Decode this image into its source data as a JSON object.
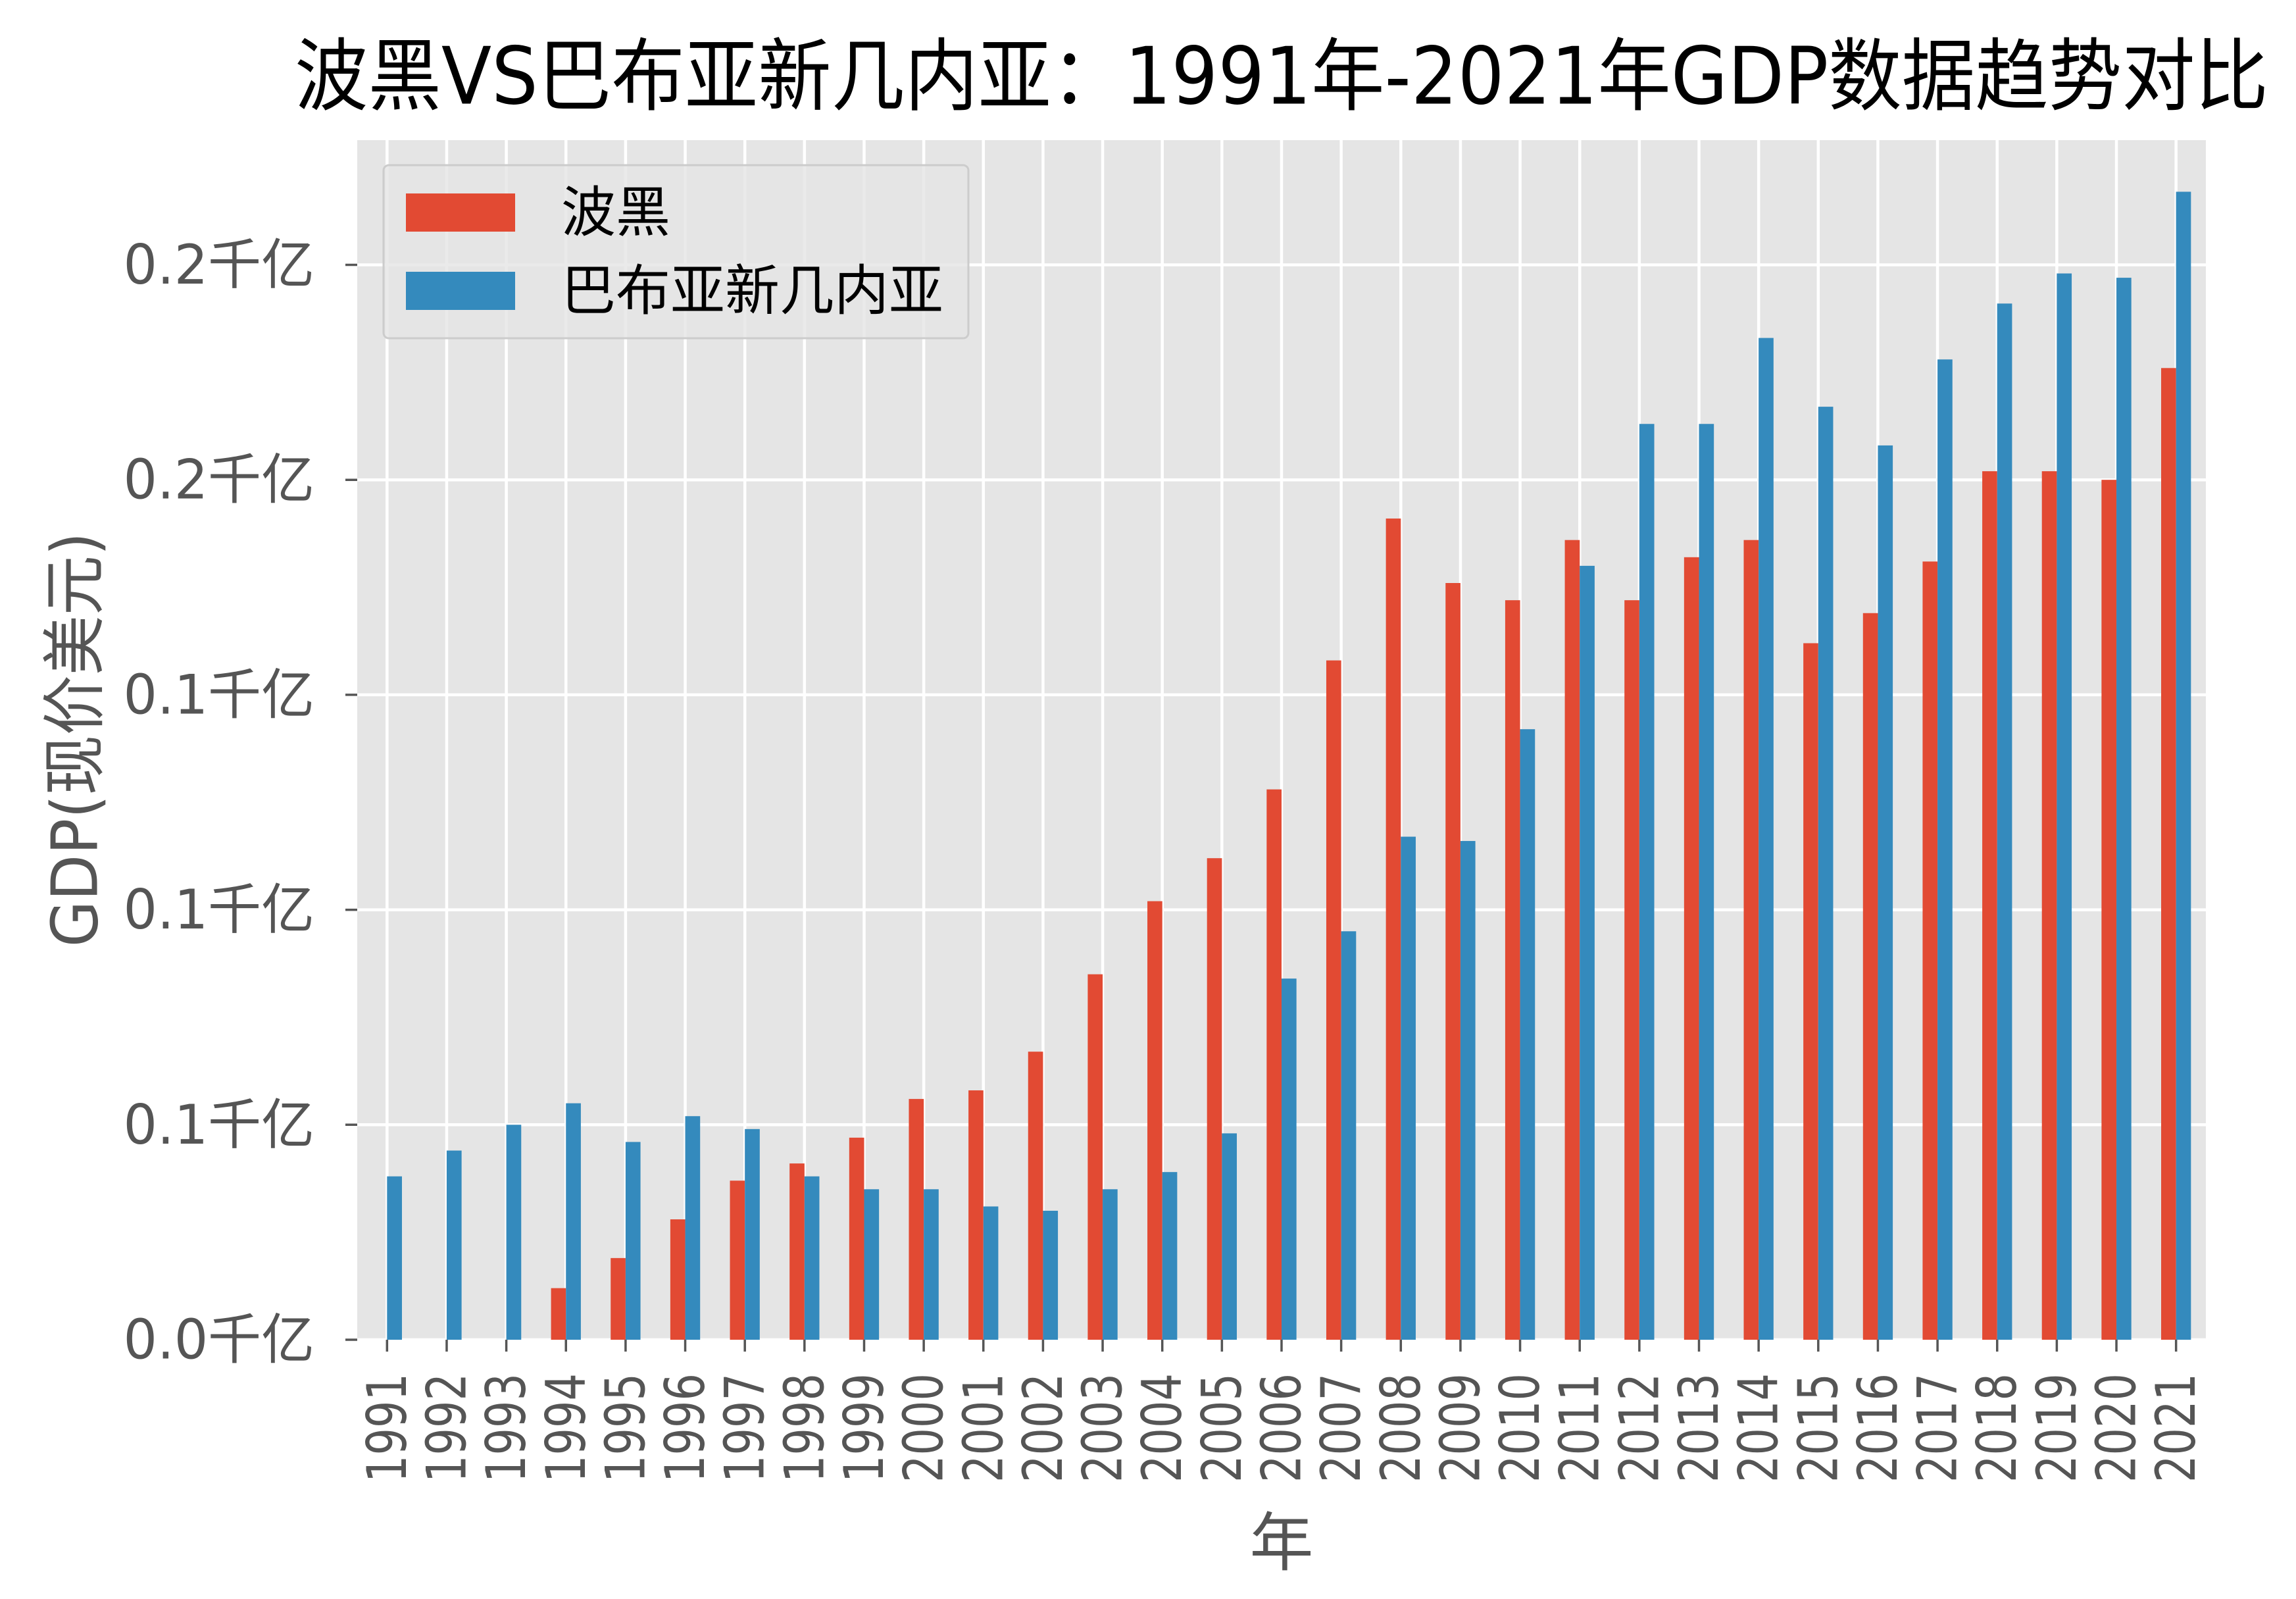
{
  "chart_data": {
    "type": "bar",
    "title": "波黑VS巴布亚新几内亚：1991年-2021年GDP数据趋势对比",
    "xlabel": "年",
    "ylabel": "GDP(现价美元)",
    "categories": [
      "1991",
      "1992",
      "1993",
      "1994",
      "1995",
      "1996",
      "1997",
      "1998",
      "1999",
      "2000",
      "2001",
      "2002",
      "2003",
      "2004",
      "2005",
      "2006",
      "2007",
      "2008",
      "2009",
      "2010",
      "2011",
      "2012",
      "2013",
      "2014",
      "2015",
      "2016",
      "2017",
      "2018",
      "2019",
      "2020",
      "2021"
    ],
    "series": [
      {
        "name": "波黑",
        "color": "#E24A33",
        "values": [
          null,
          null,
          null,
          0.012,
          0.019,
          0.028,
          0.037,
          0.041,
          0.047,
          0.056,
          0.058,
          0.067,
          0.085,
          0.102,
          0.112,
          0.128,
          0.158,
          0.191,
          0.176,
          0.172,
          0.186,
          0.172,
          0.182,
          0.186,
          0.162,
          0.169,
          0.181,
          0.202,
          0.202,
          0.2,
          0.226
        ]
      },
      {
        "name": "巴布亚新几内亚",
        "color": "#348ABD",
        "values": [
          0.038,
          0.044,
          0.05,
          0.055,
          0.046,
          0.052,
          0.049,
          0.038,
          0.035,
          0.035,
          0.031,
          0.03,
          0.035,
          0.039,
          0.048,
          0.084,
          0.095,
          0.117,
          0.116,
          0.142,
          0.18,
          0.213,
          0.213,
          0.233,
          0.217,
          0.208,
          0.228,
          0.241,
          0.248,
          0.247,
          0.267
        ]
      }
    ],
    "ylim": [
      0,
      0.279
    ],
    "yticks": [
      0,
      0.05,
      0.1,
      0.15,
      0.2,
      0.25
    ],
    "ytick_labels": [
      "0.0千亿",
      "0.1千亿",
      "0.1千亿",
      "0.1千亿",
      "0.2千亿",
      "0.2千亿"
    ],
    "grid": true,
    "legend_position": "top-left",
    "style": {
      "plot_background": "#E5E5E5",
      "grid_color": "#FFFFFF",
      "tick_color": "#555555"
    }
  }
}
